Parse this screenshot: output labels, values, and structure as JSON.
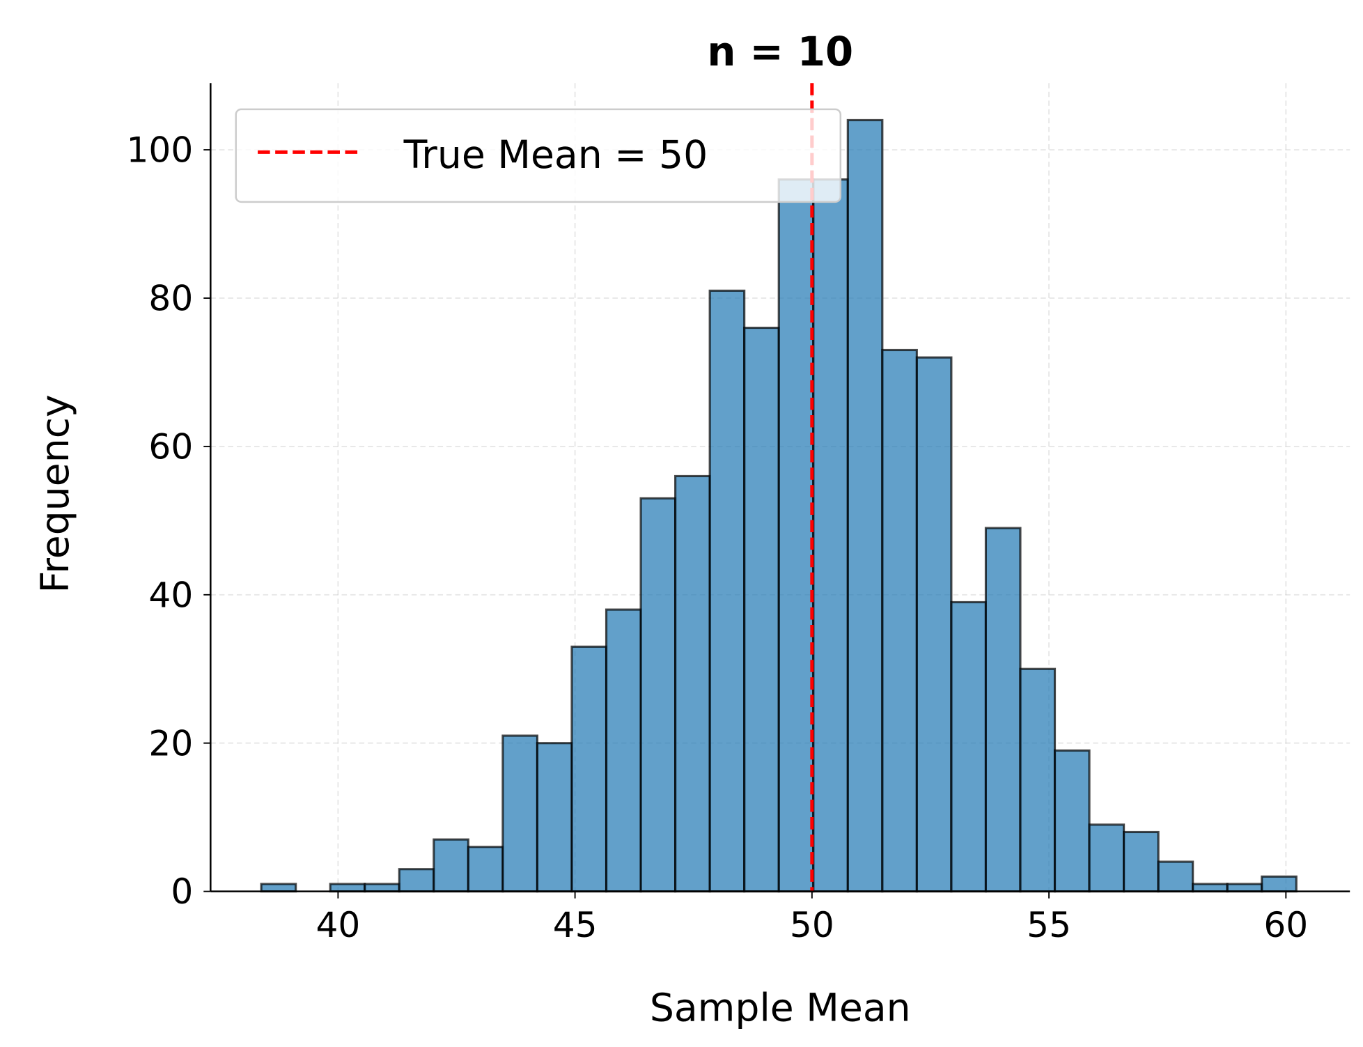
{
  "chart_data": {
    "type": "bar",
    "title": "n = 10",
    "xlabel": "Sample Mean",
    "ylabel": "Frequency",
    "xlim": [
      37.31,
      61.35
    ],
    "ylim": [
      0,
      109
    ],
    "xticks": [
      40,
      45,
      50,
      55,
      60
    ],
    "yticks": [
      0,
      20,
      40,
      60,
      80,
      100
    ],
    "grid": true,
    "bin_start": 38.38,
    "bin_end": 60.22,
    "values": [
      1,
      0,
      1,
      1,
      3,
      7,
      6,
      21,
      20,
      33,
      38,
      53,
      56,
      81,
      76,
      96,
      96,
      104,
      73,
      72,
      39,
      49,
      30,
      19,
      9,
      8,
      4,
      1,
      1,
      2
    ],
    "bar_color": "#1f77b4",
    "reference_line": {
      "x": 50,
      "label": "True Mean = 50",
      "color": "#ff0000",
      "style": "dashed"
    },
    "legend_position": "top-left"
  }
}
